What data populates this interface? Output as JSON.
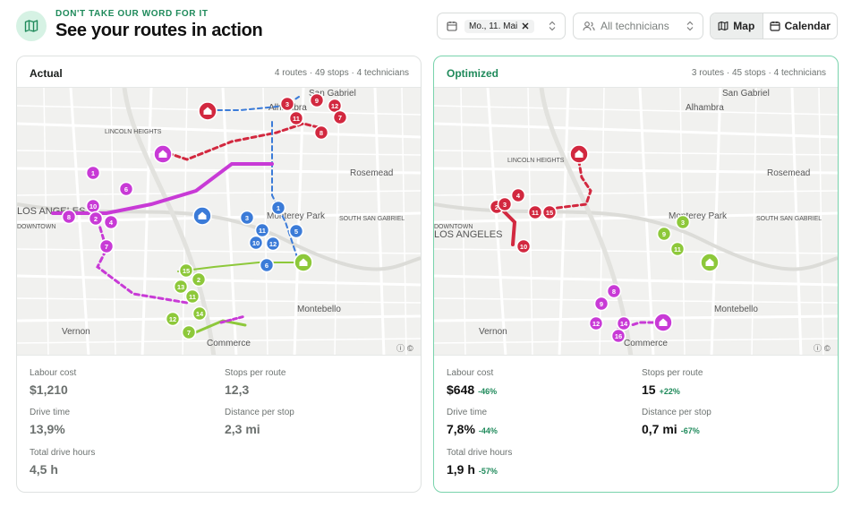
{
  "header": {
    "eyebrow": "DON'T TAKE OUR WORD FOR IT",
    "title": "See your routes in action",
    "icon": "map-icon",
    "accent": "#1f8a5b"
  },
  "controls": {
    "date_value": "Mo., 11. Mai",
    "technicians_placeholder": "All technicians",
    "view_map": "Map",
    "view_calendar": "Calendar",
    "active_view": "Map"
  },
  "actual": {
    "title": "Actual",
    "meta": "4 routes · 49 stops · 4 technicians",
    "stats": {
      "labour_cost_label": "Labour cost",
      "labour_cost": "$1,210",
      "stops_per_route_label": "Stops per route",
      "stops_per_route": "12,3",
      "drive_time_label": "Drive time",
      "drive_time": "13,9%",
      "distance_per_stop_label": "Distance per stop",
      "distance_per_stop": "2,3 mi",
      "total_drive_hours_label": "Total drive hours",
      "total_drive_hours": "4,5 h"
    }
  },
  "optimized": {
    "title": "Optimized",
    "meta": "3 routes · 45 stops · 4 technicians",
    "stats": {
      "labour_cost_label": "Labour cost",
      "labour_cost": "$648",
      "labour_cost_delta": "-46%",
      "stops_per_route_label": "Stops per route",
      "stops_per_route": "15",
      "stops_per_route_delta": "+22%",
      "drive_time_label": "Drive time",
      "drive_time": "7,8%",
      "drive_time_delta": "-44%",
      "distance_per_stop_label": "Distance per stop",
      "distance_per_stop": "0,7 mi",
      "distance_per_stop_delta": "-67%",
      "total_drive_hours_label": "Total drive hours",
      "total_drive_hours": "1,9 h",
      "total_drive_hours_delta": "-57%"
    }
  },
  "map_labels": {
    "san_gabriel": "San Gabriel",
    "alhambra": "Alhambra",
    "lincoln_heights": "LINCOLN HEIGHTS",
    "rosemead": "Rosemead",
    "los_angeles": "LOS ANGELES",
    "downtown": "DOWNTOWN",
    "monterey_park": "Monterey Park",
    "south_san_gabriel": "SOUTH SAN GABRIEL",
    "montebello": "Montebello",
    "vernon": "Vernon",
    "commerce": "Commerce"
  },
  "route_colors": {
    "red": "#d2283f",
    "magenta": "#c83ad6",
    "blue": "#3b7bd8",
    "green": "#8dc83a"
  },
  "actual_markers": {
    "red": [
      "3",
      "9",
      "11",
      "12",
      "7",
      "8"
    ],
    "magenta": [
      "1",
      "6",
      "10",
      "8",
      "2",
      "4",
      "7"
    ],
    "blue": [
      "1",
      "3",
      "11",
      "10",
      "12",
      "5",
      "6"
    ],
    "green": [
      "2",
      "15",
      "13",
      "11",
      "12",
      "14",
      "7"
    ]
  },
  "optimized_markers": {
    "red": [
      "2",
      "3",
      "4",
      "11",
      "15",
      "10"
    ],
    "green": [
      "3",
      "9",
      "11"
    ],
    "magenta": [
      "8",
      "9",
      "12",
      "14",
      "16"
    ]
  }
}
